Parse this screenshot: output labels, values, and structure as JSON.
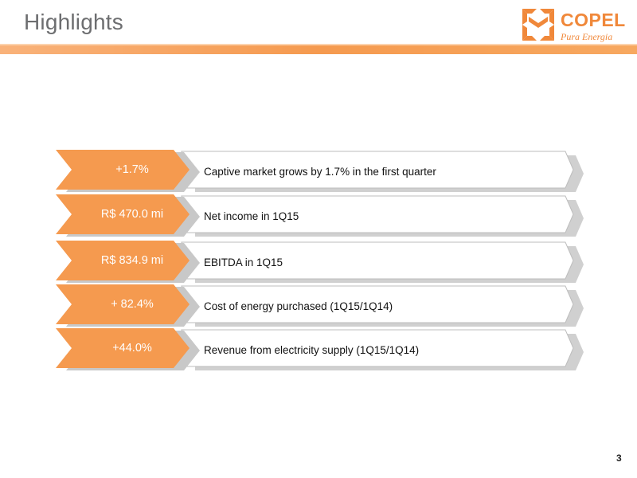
{
  "slide": {
    "title": "Highlights",
    "page_number": "3"
  },
  "logo": {
    "name": "COPEL",
    "tagline": "Pura Energia",
    "icon": "copel-logo-icon"
  },
  "colors": {
    "accent_orange": "#f59a4f",
    "title_gray": "#6d6e70",
    "rule_orange": "#f7a45f"
  },
  "highlights": [
    {
      "value": "+1.7%",
      "description": "Captive market grows by 1.7% in the first quarter"
    },
    {
      "value": "R$ 470.0 mi",
      "description": "Net income in 1Q15"
    },
    {
      "value": "R$ 834.9 mi",
      "description": "EBITDA in 1Q15"
    },
    {
      "value": "+ 82.4%",
      "description": "Cost of energy purchased (1Q15/1Q14)"
    },
    {
      "value": "+44.0%",
      "description": "Revenue from electricity supply (1Q15/1Q14)"
    }
  ]
}
